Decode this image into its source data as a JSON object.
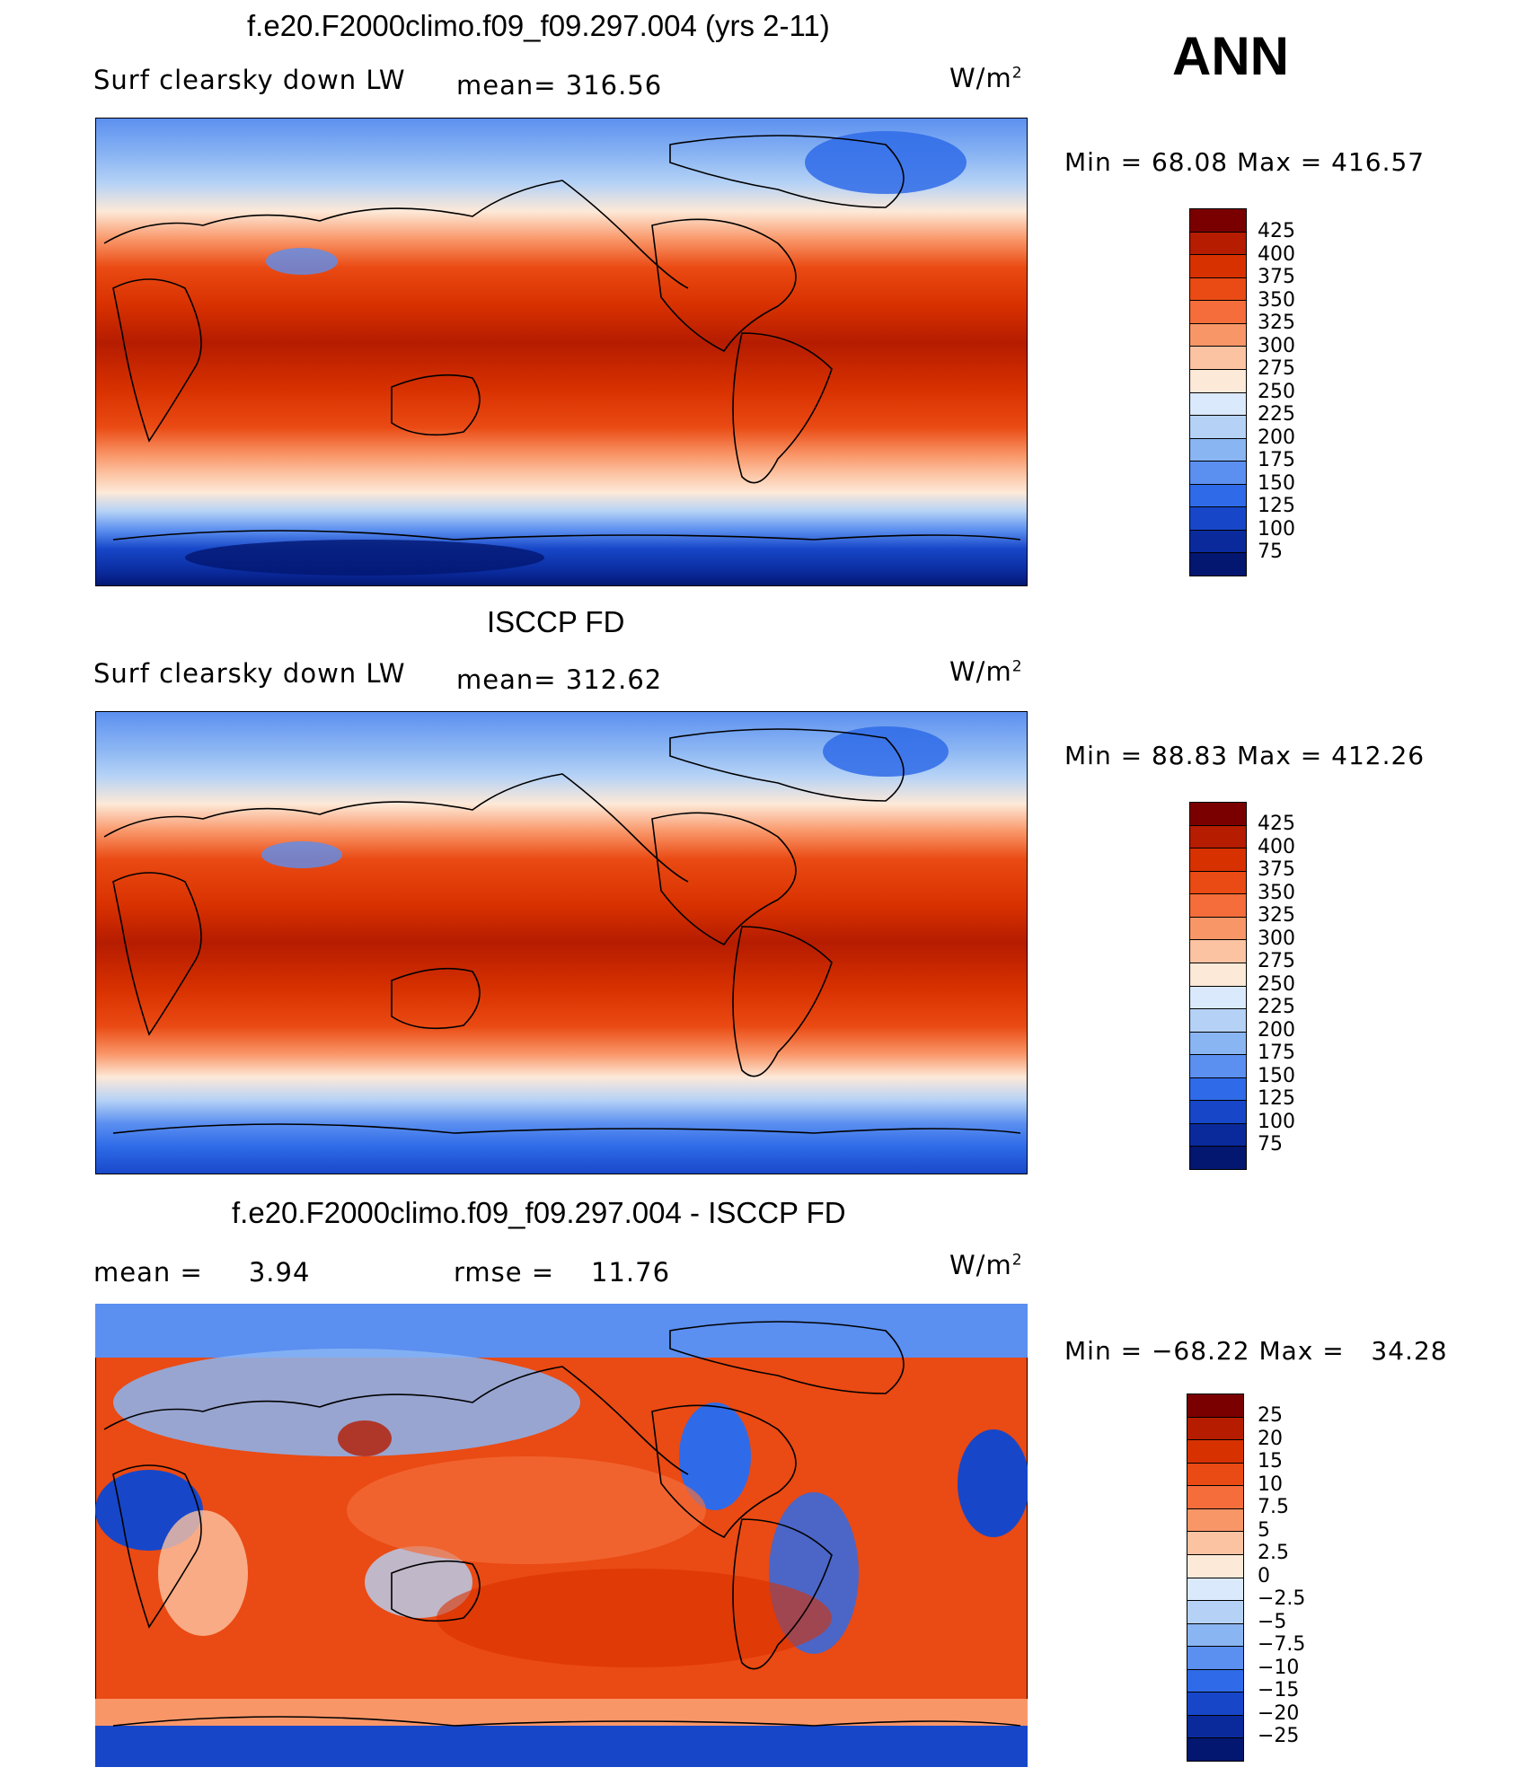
{
  "season": "ANN",
  "units": "W/m",
  "units_sup": "2",
  "panels": [
    {
      "title": "f.e20.F2000climo.f09_f09.297.004 (yrs 2-11)",
      "left_label": "Surf clearsky down LW",
      "center_label": "mean= 316.56",
      "min_max": "Min =   68.08 Max = 416.57",
      "colorbar_levels": [
        "425",
        "400",
        "375",
        "350",
        "325",
        "300",
        "275",
        "250",
        "225",
        "200",
        "175",
        "150",
        "125",
        "100",
        "75"
      ],
      "colorbar_colors": [
        "#7a0000",
        "#b51c00",
        "#d83100",
        "#ea4a13",
        "#f46d3a",
        "#f99668",
        "#fcc3a2",
        "#fde9d8",
        "#dae9fb",
        "#b5d2f6",
        "#8ab5f3",
        "#5b8ff0",
        "#2f6be8",
        "#1747c8",
        "#0a2a9c",
        "#031670"
      ]
    },
    {
      "title": "ISCCP FD",
      "left_label": "Surf clearsky down LW",
      "center_label": "mean= 312.62",
      "min_max": "Min =   88.83 Max = 412.26",
      "colorbar_levels": [
        "425",
        "400",
        "375",
        "350",
        "325",
        "300",
        "275",
        "250",
        "225",
        "200",
        "175",
        "150",
        "125",
        "100",
        "75"
      ],
      "colorbar_colors": [
        "#7a0000",
        "#b51c00",
        "#d83100",
        "#ea4a13",
        "#f46d3a",
        "#f99668",
        "#fcc3a2",
        "#fde9d8",
        "#dae9fb",
        "#b5d2f6",
        "#8ab5f3",
        "#5b8ff0",
        "#2f6be8",
        "#1747c8",
        "#0a2a9c",
        "#031670"
      ]
    },
    {
      "title": "f.e20.F2000climo.f09_f09.297.004 - ISCCP FD",
      "left_label": "mean =     3.94",
      "center_label": "rmse =    11.76",
      "min_max": "Min = −68.22 Max =   34.28",
      "colorbar_levels": [
        "25",
        "20",
        "15",
        "10",
        "7.5",
        "5",
        "2.5",
        "0",
        "−2.5",
        "−5",
        "−7.5",
        "−10",
        "−15",
        "−20",
        "−25"
      ],
      "colorbar_colors": [
        "#7a0000",
        "#b51c00",
        "#d83100",
        "#ea4a13",
        "#f46d3a",
        "#f99668",
        "#fcc3a2",
        "#fde9d8",
        "#dae9fb",
        "#b5d2f6",
        "#8ab5f3",
        "#5b8ff0",
        "#2f6be8",
        "#1747c8",
        "#0a2a9c",
        "#031670"
      ]
    }
  ]
}
